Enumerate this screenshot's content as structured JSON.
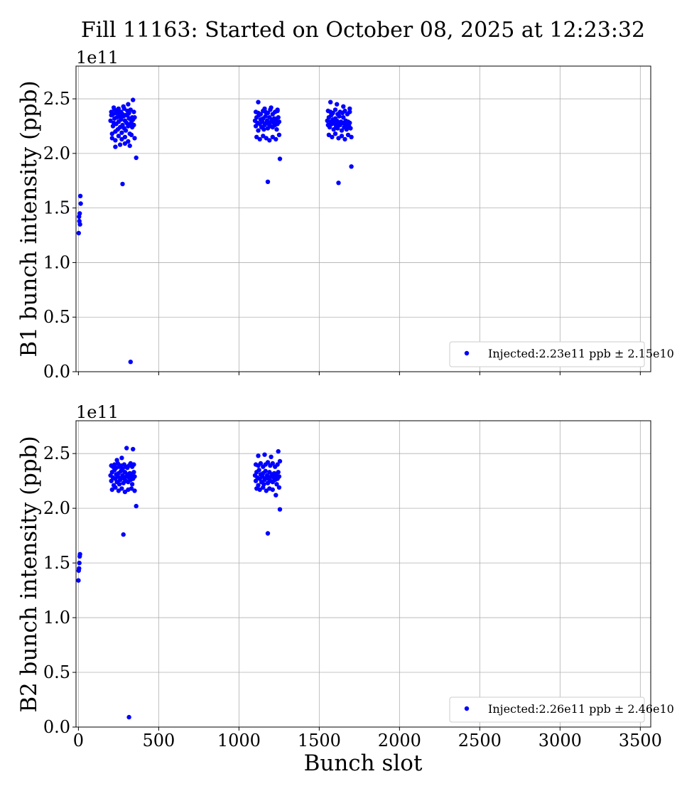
{
  "title": "Fill 11163: Started on October 08, 2025 at 12:23:32",
  "xlabel": "Bunch slot",
  "x_tick_labels": [
    "0",
    "500",
    "1000",
    "1500",
    "2000",
    "2500",
    "3000",
    "3500"
  ],
  "y_tick_labels": [
    "0.0",
    "0.5",
    "1.0",
    "1.5",
    "2.0",
    "2.5"
  ],
  "colors": {
    "points": "#0000ff",
    "grid": "#b0b0b0",
    "legend_border": "#cccccc"
  },
  "chart_data": [
    {
      "type": "scatter",
      "ylabel": "B1 bunch intensity (ppb)",
      "y_exponent": "1e11",
      "xlim": [
        -15,
        3565
      ],
      "ylim": [
        0.0,
        2.8
      ],
      "grid": true,
      "legend": {
        "label": "Injected:2.23e11 ppb ± 2.15e10",
        "placement": "lower right"
      },
      "series": [
        {
          "name": "Injected:2.23e11 ppb ± 2.15e10",
          "x": [
            2,
            4,
            6,
            8,
            10,
            12,
            14,
            200,
            205,
            210,
            215,
            220,
            225,
            230,
            235,
            240,
            245,
            250,
            255,
            260,
            265,
            270,
            275,
            280,
            285,
            290,
            295,
            300,
            305,
            310,
            315,
            320,
            325,
            330,
            335,
            340,
            345,
            350,
            205,
            215,
            225,
            235,
            245,
            255,
            265,
            275,
            285,
            295,
            305,
            315,
            325,
            335,
            345,
            210,
            230,
            250,
            270,
            290,
            310,
            330,
            350,
            220,
            250,
            280,
            310,
            340,
            230,
            260,
            290,
            320,
            275,
            360,
            325,
            1100,
            1105,
            1110,
            1115,
            1120,
            1125,
            1130,
            1135,
            1140,
            1145,
            1150,
            1155,
            1160,
            1165,
            1170,
            1175,
            1180,
            1185,
            1190,
            1195,
            1200,
            1205,
            1210,
            1215,
            1220,
            1225,
            1230,
            1235,
            1240,
            1245,
            1250,
            1105,
            1120,
            1135,
            1150,
            1165,
            1180,
            1195,
            1210,
            1225,
            1240,
            1110,
            1130,
            1150,
            1170,
            1190,
            1210,
            1230,
            1250,
            1120,
            1160,
            1200,
            1240,
            1180,
            1255,
            1550,
            1555,
            1560,
            1565,
            1570,
            1575,
            1580,
            1585,
            1590,
            1595,
            1600,
            1605,
            1610,
            1615,
            1620,
            1625,
            1630,
            1635,
            1640,
            1645,
            1650,
            1655,
            1660,
            1665,
            1670,
            1675,
            1680,
            1685,
            1690,
            1695,
            1555,
            1570,
            1585,
            1600,
            1615,
            1630,
            1645,
            1660,
            1675,
            1690,
            1560,
            1580,
            1600,
            1620,
            1640,
            1660,
            1680,
            1700,
            1570,
            1610,
            1650,
            1690,
            1620,
            1700
          ],
          "y": [
            1.27,
            1.42,
            1.38,
            1.45,
            1.35,
            1.61,
            1.54,
            2.3,
            2.35,
            2.18,
            2.25,
            2.28,
            2.32,
            2.2,
            2.27,
            2.33,
            2.22,
            2.29,
            2.36,
            2.24,
            2.31,
            2.19,
            2.26,
            2.34,
            2.23,
            2.3,
            2.21,
            2.28,
            2.35,
            2.25,
            2.32,
            2.18,
            2.27,
            2.29,
            2.24,
            2.31,
            2.26,
            2.33,
            2.38,
            2.36,
            2.4,
            2.37,
            2.39,
            2.34,
            2.38,
            2.36,
            2.41,
            2.35,
            2.39,
            2.37,
            2.4,
            2.33,
            2.38,
            2.14,
            2.12,
            2.16,
            2.13,
            2.15,
            2.11,
            2.17,
            2.14,
            2.42,
            2.41,
            2.43,
            2.45,
            2.49,
            2.06,
            2.08,
            2.09,
            2.07,
            1.72,
            1.96,
            0.09,
            2.3,
            2.25,
            2.33,
            2.28,
            2.21,
            2.35,
            2.27,
            2.31,
            2.24,
            2.29,
            2.32,
            2.22,
            2.26,
            2.34,
            2.28,
            2.3,
            2.23,
            2.27,
            2.33,
            2.25,
            2.29,
            2.31,
            2.24,
            2.28,
            2.32,
            2.26,
            2.3,
            2.22,
            2.27,
            2.33,
            2.29,
            2.38,
            2.37,
            2.36,
            2.39,
            2.38,
            2.37,
            2.4,
            2.36,
            2.38,
            2.39,
            2.15,
            2.13,
            2.16,
            2.14,
            2.12,
            2.15,
            2.13,
            2.17,
            2.47,
            2.41,
            2.42,
            2.4,
            1.74,
            1.95,
            2.3,
            2.26,
            2.33,
            2.24,
            2.29,
            2.35,
            2.27,
            2.31,
            2.22,
            2.28,
            2.32,
            2.25,
            2.3,
            2.23,
            2.27,
            2.34,
            2.26,
            2.29,
            2.21,
            2.28,
            2.33,
            2.24,
            2.27,
            2.3,
            2.22,
            2.26,
            2.29,
            2.25,
            2.28,
            2.23,
            2.39,
            2.38,
            2.37,
            2.4,
            2.36,
            2.38,
            2.37,
            2.39,
            2.36,
            2.38,
            2.17,
            2.15,
            2.18,
            2.14,
            2.16,
            2.13,
            2.17,
            2.15,
            2.47,
            2.45,
            2.43,
            2.41,
            1.73,
            1.88
          ]
        }
      ]
    },
    {
      "type": "scatter",
      "ylabel": "B2 bunch intensity (ppb)",
      "y_exponent": "1e11",
      "xlim": [
        -15,
        3565
      ],
      "ylim": [
        0.0,
        2.8
      ],
      "grid": true,
      "legend": {
        "label": "Injected:2.26e11 ppb ± 2.46e10",
        "placement": "lower right"
      },
      "series": [
        {
          "name": "Injected:2.26e11 ppb ± 2.46e10",
          "x": [
            0,
            2,
            4,
            6,
            8,
            10,
            200,
            205,
            210,
            215,
            220,
            225,
            230,
            235,
            240,
            245,
            250,
            255,
            260,
            265,
            270,
            275,
            280,
            285,
            290,
            295,
            300,
            305,
            310,
            315,
            320,
            325,
            330,
            335,
            340,
            345,
            350,
            205,
            215,
            225,
            235,
            245,
            255,
            265,
            275,
            285,
            295,
            305,
            315,
            325,
            335,
            345,
            210,
            230,
            250,
            270,
            290,
            310,
            330,
            350,
            240,
            270,
            300,
            340,
            280,
            360,
            315,
            1100,
            1105,
            1110,
            1115,
            1120,
            1125,
            1130,
            1135,
            1140,
            1145,
            1150,
            1155,
            1160,
            1165,
            1170,
            1175,
            1180,
            1185,
            1190,
            1195,
            1200,
            1205,
            1210,
            1215,
            1220,
            1225,
            1230,
            1235,
            1240,
            1245,
            1250,
            1105,
            1120,
            1135,
            1150,
            1165,
            1180,
            1195,
            1210,
            1225,
            1240,
            1255,
            1110,
            1130,
            1150,
            1170,
            1190,
            1210,
            1230,
            1250,
            1120,
            1160,
            1200,
            1245,
            1180,
            1255
          ],
          "y": [
            1.34,
            1.43,
            1.45,
            1.5,
            1.56,
            1.58,
            2.3,
            2.25,
            2.33,
            2.28,
            2.21,
            2.35,
            2.27,
            2.31,
            2.24,
            2.29,
            2.32,
            2.22,
            2.26,
            2.34,
            2.28,
            2.3,
            2.23,
            2.27,
            2.33,
            2.25,
            2.29,
            2.31,
            2.24,
            2.28,
            2.32,
            2.26,
            2.3,
            2.22,
            2.27,
            2.33,
            2.29,
            2.39,
            2.38,
            2.4,
            2.37,
            2.41,
            2.38,
            2.39,
            2.36,
            2.4,
            2.38,
            2.37,
            2.39,
            2.41,
            2.38,
            2.4,
            2.17,
            2.19,
            2.16,
            2.18,
            2.15,
            2.17,
            2.18,
            2.16,
            2.44,
            2.46,
            2.55,
            2.54,
            1.76,
            2.02,
            0.09,
            2.3,
            2.25,
            2.33,
            2.28,
            2.21,
            2.35,
            2.27,
            2.31,
            2.24,
            2.29,
            2.32,
            2.22,
            2.26,
            2.34,
            2.28,
            2.3,
            2.23,
            2.27,
            2.33,
            2.25,
            2.29,
            2.31,
            2.24,
            2.28,
            2.32,
            2.26,
            2.3,
            2.22,
            2.27,
            2.33,
            2.29,
            2.4,
            2.39,
            2.41,
            2.38,
            2.4,
            2.42,
            2.39,
            2.41,
            2.38,
            2.4,
            2.43,
            2.18,
            2.17,
            2.19,
            2.16,
            2.18,
            2.17,
            2.12,
            2.19,
            2.48,
            2.49,
            2.47,
            2.52,
            1.77,
            1.99
          ]
        }
      ]
    }
  ]
}
